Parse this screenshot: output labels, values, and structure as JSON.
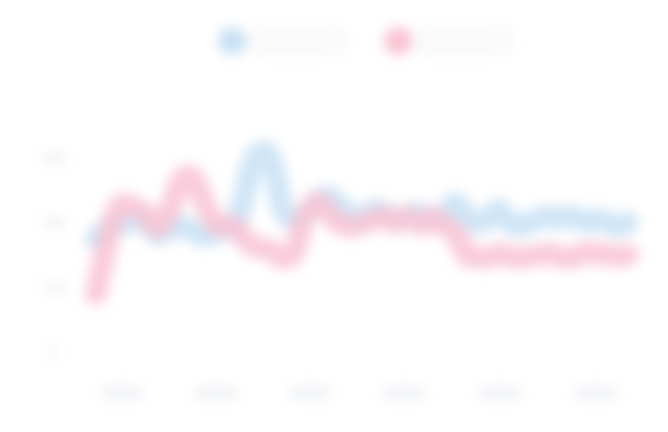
{
  "chart_data": {
    "type": "line",
    "title": "",
    "xlabel": "",
    "ylabel": "",
    "legend_position": "top-center",
    "grid": false,
    "ylim": [
      0,
      3
    ],
    "y_ticks": [
      {
        "value": 0,
        "label": "0"
      },
      {
        "value": 1,
        "label": "100"
      },
      {
        "value": 2,
        "label": "200"
      },
      {
        "value": 3,
        "label": "300"
      }
    ],
    "categories": [
      "",
      "",
      "",
      "",
      "",
      ""
    ],
    "x": [
      0,
      0.12,
      0.22,
      0.32,
      0.45,
      0.55,
      0.65,
      0.78,
      0.9,
      1.02,
      1.12,
      1.23,
      1.33,
      1.45,
      1.55,
      1.65,
      1.78,
      1.88,
      1.98,
      2.1,
      2.2,
      2.32,
      2.42,
      2.52,
      2.65,
      2.75,
      2.85,
      2.95,
      3.05,
      3.17,
      3.28,
      3.38,
      3.48,
      3.58,
      3.68,
      3.8,
      3.92,
      4.02,
      4.15,
      4.25,
      4.35,
      4.45,
      4.58,
      4.68,
      4.8,
      4.9,
      5.0,
      5.12,
      5.22,
      5.32,
      5.42,
      5.52,
      5.63
    ],
    "series": [
      {
        "name": "",
        "color": "#c7e1f5",
        "values": [
          1.75,
          1.9,
          1.95,
          2.0,
          2.05,
          1.97,
          1.82,
          1.9,
          1.95,
          1.87,
          1.8,
          1.82,
          1.9,
          1.92,
          2.3,
          2.9,
          3.1,
          2.85,
          2.2,
          2.05,
          2.1,
          2.3,
          2.4,
          2.35,
          2.15,
          2.05,
          2.1,
          2.2,
          2.15,
          2.05,
          2.1,
          2.15,
          2.12,
          2.05,
          2.07,
          2.3,
          2.1,
          2.0,
          2.05,
          2.2,
          2.05,
          1.95,
          2.0,
          2.05,
          2.1,
          2.05,
          2.1,
          2.05,
          2.0,
          2.05,
          2.0,
          1.95,
          2.0
        ]
      },
      {
        "name": "",
        "color": "#f9c3d3",
        "values": [
          0.9,
          1.7,
          2.2,
          2.28,
          2.2,
          2.1,
          1.92,
          2.2,
          2.65,
          2.7,
          2.4,
          2.05,
          1.95,
          1.95,
          1.8,
          1.65,
          1.6,
          1.55,
          1.45,
          1.55,
          2.05,
          2.3,
          2.25,
          2.05,
          1.95,
          1.95,
          2.0,
          2.05,
          2.1,
          2.0,
          2.1,
          2.0,
          1.98,
          2.08,
          1.95,
          1.85,
          1.5,
          1.48,
          1.45,
          1.52,
          1.5,
          1.45,
          1.48,
          1.5,
          1.52,
          1.48,
          1.45,
          1.5,
          1.55,
          1.5,
          1.52,
          1.48,
          1.5
        ]
      }
    ]
  }
}
